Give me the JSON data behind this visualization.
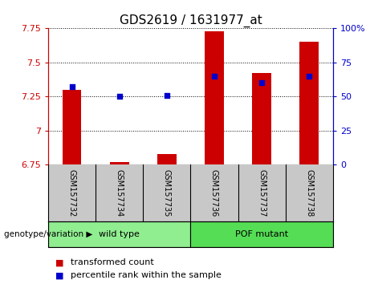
{
  "title": "GDS2619 / 1631977_at",
  "samples": [
    "GSM157732",
    "GSM157734",
    "GSM157735",
    "GSM157736",
    "GSM157737",
    "GSM157738"
  ],
  "transformed_count": [
    7.3,
    6.77,
    6.83,
    7.73,
    7.42,
    7.65
  ],
  "percentile_rank": [
    57,
    50,
    51,
    65,
    60,
    65
  ],
  "ymin": 6.75,
  "ymax": 7.75,
  "yticks": [
    6.75,
    7.0,
    7.25,
    7.5,
    7.75
  ],
  "ytick_labels": [
    "6.75",
    "7",
    "7.25",
    "7.5",
    "7.75"
  ],
  "y2min": 0,
  "y2max": 100,
  "y2ticks": [
    0,
    25,
    50,
    75,
    100
  ],
  "y2tick_labels": [
    "0",
    "25",
    "50",
    "75",
    "100%"
  ],
  "bar_color": "#CC0000",
  "dot_color": "#0000CC",
  "wild_type_label": "wild type",
  "pof_mutant_label": "POF mutant",
  "wild_type_color": "#90EE90",
  "pof_mutant_color": "#55DD55",
  "group_label": "genotype/variation",
  "legend_transformed": "transformed count",
  "legend_percentile": "percentile rank within the sample",
  "bar_width": 0.4,
  "background_color": "#C8C8C8",
  "plot_bg_color": "#FFFFFF",
  "title_fontsize": 11,
  "axis_label_color_left": "#CC0000",
  "axis_label_color_right": "#0000CC",
  "tick_fontsize": 8,
  "sample_fontsize": 7,
  "legend_fontsize": 8
}
